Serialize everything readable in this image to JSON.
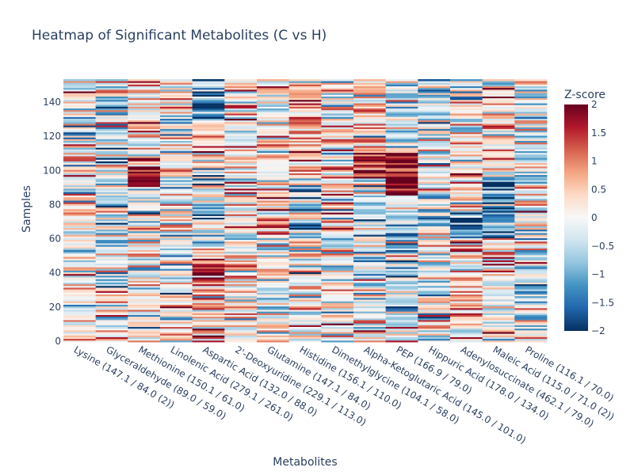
{
  "chart_data": {
    "type": "heatmap",
    "title": "Heatmap of Significant Metabolites (C vs H)",
    "xlabel": "Metabolites",
    "ylabel": "Samples",
    "categories": [
      "Lysine (147.1 / 84.0 (2))",
      "Glyceraldehyde (89.0 / 59.0)",
      "Methionine (150.1 / 61.0)",
      "Linolenic Acid (279.1 / 261.0)",
      "Aspartic Acid (132.0 / 88.0)",
      "2'-Deoxyuridine (229.1 / 113.0)",
      "Glutamine (147.1 / 84.0)",
      "Histidine (156.1 / 110.0)",
      "Dimethylglycine (104.1 / 58.0)",
      "Alpha-Ketoglutaric Acid (145.0 / 101.0)",
      "PEP (166.9 / 79.0)",
      "Hippuric Acid (178.0 / 134.0)",
      "Adenylosuccinate (462.1 / 79.0)",
      "Maleic Acid (115.0 / 71.0 (2))",
      "Proline (116.1 / 70.0)"
    ],
    "y_ticks": [
      "0",
      "20",
      "40",
      "60",
      "80",
      "100",
      "120",
      "140"
    ],
    "y_tick_values": [
      0,
      20,
      40,
      60,
      80,
      100,
      120,
      140
    ],
    "ylim": [
      -0.5,
      153.5
    ],
    "n_samples": 154,
    "zmin": -2,
    "zmax": 2,
    "colorscale_name": "RdBu",
    "colorbar": {
      "title": "Z-score",
      "ticks": [
        "2",
        "1.5",
        "1",
        "0.5",
        "0",
        "−0.5",
        "−1",
        "−1.5",
        "−2"
      ],
      "tick_values": [
        2,
        1.5,
        1,
        0.5,
        0,
        -0.5,
        -1,
        -1.5,
        -2
      ]
    },
    "colors": {
      "high": "#67001f",
      "mid": "#f7f7f7",
      "low": "#053061",
      "text": "#2a3f5f"
    },
    "column_bands": [
      {
        "metabolite": "Lysine (147.1 / 84.0 (2))",
        "bands": [
          [
            0,
            153,
            0.0
          ]
        ]
      },
      {
        "metabolite": "Glyceraldehyde (89.0 / 59.0)",
        "bands": [
          [
            0,
            30,
            0.2
          ],
          [
            31,
            80,
            -0.6
          ],
          [
            81,
            110,
            0.0
          ],
          [
            111,
            153,
            -0.3
          ]
        ]
      },
      {
        "metabolite": "Methionine (150.1 / 61.0)",
        "bands": [
          [
            0,
            90,
            0.0
          ],
          [
            91,
            108,
            1.6
          ],
          [
            109,
            153,
            0.3
          ]
        ]
      },
      {
        "metabolite": "Linolenic Acid (279.1 / 261.0)",
        "bands": [
          [
            0,
            153,
            0.0
          ]
        ]
      },
      {
        "metabolite": "Aspartic Acid (132.0 / 88.0)",
        "bands": [
          [
            0,
            30,
            0.6
          ],
          [
            31,
            55,
            1.2
          ],
          [
            56,
            100,
            -0.6
          ],
          [
            101,
            130,
            0.3
          ],
          [
            131,
            153,
            -1.3
          ]
        ]
      },
      {
        "metabolite": "2'-Deoxyuridine (229.1 / 113.0)",
        "bands": [
          [
            0,
            153,
            0.0
          ]
        ]
      },
      {
        "metabolite": "Glutamine (147.1 / 84.0)",
        "bands": [
          [
            0,
            60,
            0.0
          ],
          [
            61,
            100,
            0.5
          ],
          [
            101,
            153,
            0.2
          ]
        ]
      },
      {
        "metabolite": "Histidine (156.1 / 110.0)",
        "bands": [
          [
            0,
            60,
            0.0
          ],
          [
            61,
            95,
            -0.7
          ],
          [
            96,
            153,
            0.6
          ]
        ]
      },
      {
        "metabolite": "Dimethylglycine (104.1 / 58.0)",
        "bands": [
          [
            0,
            153,
            0.2
          ]
        ]
      },
      {
        "metabolite": "Alpha-Ketoglutaric Acid (145.0 / 101.0)",
        "bands": [
          [
            0,
            60,
            -0.1
          ],
          [
            61,
            95,
            -0.3
          ],
          [
            96,
            110,
            1.7
          ],
          [
            111,
            153,
            0.3
          ]
        ]
      },
      {
        "metabolite": "PEP (166.9 / 79.0)",
        "bands": [
          [
            0,
            8,
            0.3
          ],
          [
            9,
            85,
            -0.6
          ],
          [
            86,
            112,
            1.9
          ],
          [
            113,
            153,
            -0.4
          ]
        ]
      },
      {
        "metabolite": "Hippuric Acid (178.0 / 134.0)",
        "bands": [
          [
            0,
            20,
            0.1
          ],
          [
            21,
            153,
            -0.2
          ]
        ]
      },
      {
        "metabolite": "Adenylosuccinate (462.1 / 79.0)",
        "bands": [
          [
            0,
            20,
            0.4
          ],
          [
            21,
            60,
            0.5
          ],
          [
            61,
            75,
            -1.9
          ],
          [
            76,
            153,
            0.1
          ]
        ]
      },
      {
        "metabolite": "Maleic Acid (115.0 / 71.0 (2))",
        "bands": [
          [
            0,
            60,
            0.1
          ],
          [
            61,
            95,
            -1.2
          ],
          [
            96,
            153,
            0.2
          ]
        ]
      },
      {
        "metabolite": "Proline (116.1 / 70.0)",
        "bands": [
          [
            0,
            153,
            0.0
          ]
        ]
      }
    ]
  }
}
